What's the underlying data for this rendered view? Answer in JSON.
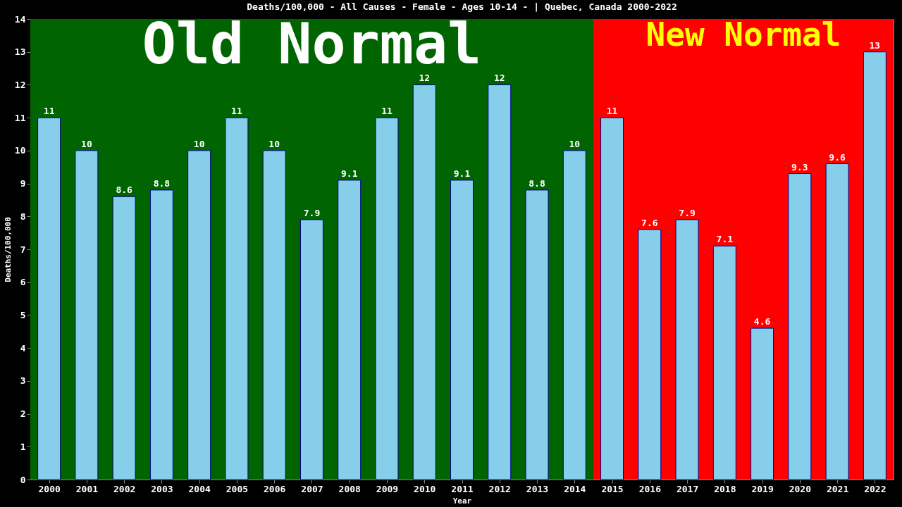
{
  "chart_data": {
    "type": "bar",
    "title": "Deaths/100,000 - All Causes - Female - Ages 10-14 -  | Quebec, Canada 2000-2022",
    "xlabel": "Year",
    "ylabel": "Deaths/100,000",
    "categories": [
      "2000",
      "2001",
      "2002",
      "2003",
      "2004",
      "2005",
      "2006",
      "2007",
      "2008",
      "2009",
      "2010",
      "2011",
      "2012",
      "2013",
      "2014",
      "2015",
      "2016",
      "2017",
      "2018",
      "2019",
      "2020",
      "2021",
      "2022"
    ],
    "values": [
      11,
      10,
      8.6,
      8.8,
      10,
      11,
      10,
      7.9,
      9.1,
      11,
      12,
      9.1,
      12,
      8.8,
      10,
      11,
      7.6,
      7.9,
      7.1,
      4.6,
      9.3,
      9.6,
      13
    ],
    "color": "#87ceeb",
    "data_labels": true,
    "grid": false,
    "ylim": [
      0,
      14
    ],
    "yticks": [
      0,
      1,
      2,
      3,
      4,
      5,
      6,
      7,
      8,
      9,
      10,
      11,
      12,
      13,
      14
    ],
    "bands": [
      {
        "axis": "x",
        "from": "2000",
        "to": "2014",
        "label": "Old Normal",
        "color": "#006400"
      },
      {
        "axis": "x",
        "from": "2015",
        "to": "2022",
        "label": "New Normal",
        "color": "#ff0000"
      }
    ]
  }
}
